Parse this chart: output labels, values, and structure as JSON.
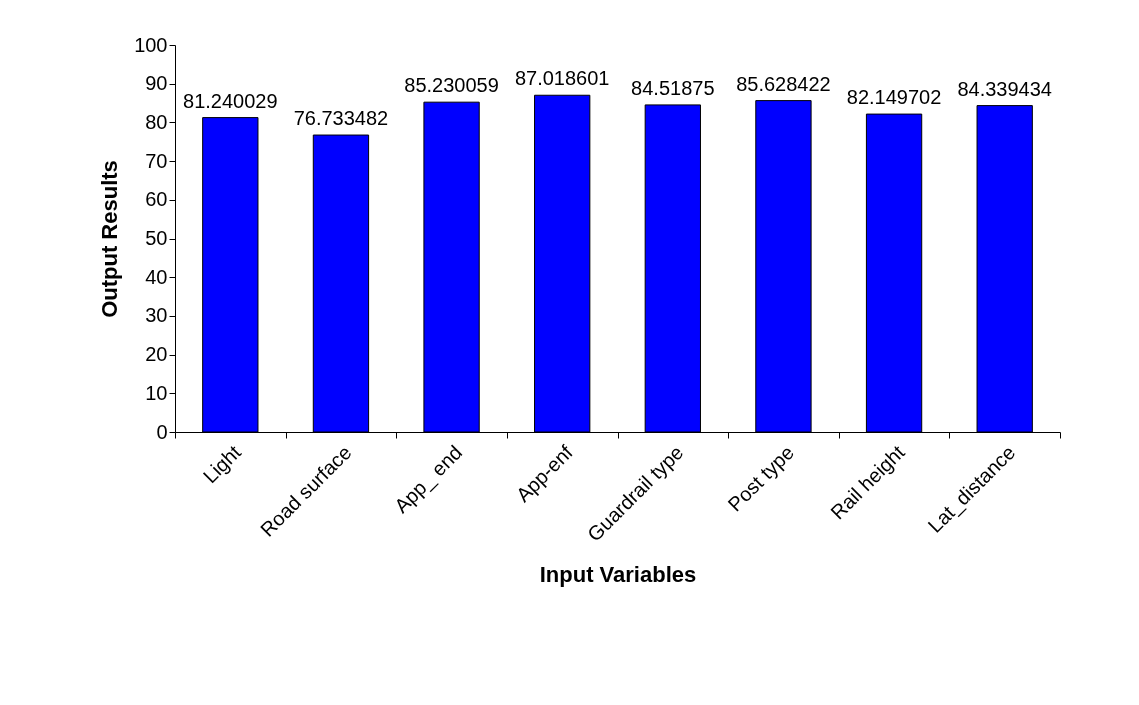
{
  "chart_data": {
    "type": "bar",
    "xlabel": "Input Variables",
    "ylabel": "Output Results",
    "categories": [
      "Light",
      "Road surface",
      "App_ end",
      "App-enf",
      "Guardrail type",
      "Post type",
      "Rail height",
      "Lat_distance"
    ],
    "values": [
      81.240029,
      76.733482,
      85.230059,
      87.018601,
      84.51875,
      85.628422,
      82.149702,
      84.339434
    ],
    "color": "#0000ff",
    "ylim": [
      0,
      100
    ],
    "yticks": [
      0,
      10,
      20,
      30,
      40,
      50,
      60,
      70,
      80,
      90,
      100
    ],
    "grid": false,
    "data_labels": true
  }
}
